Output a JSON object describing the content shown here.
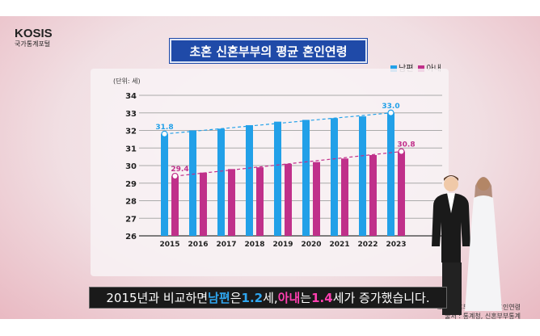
{
  "logo": {
    "name": "KOSIS",
    "subtitle": "국가통계포털"
  },
  "title": "초혼 신혼부부의 평균 혼인연령",
  "legend": [
    {
      "label": "남편",
      "color": "#22a0e8"
    },
    {
      "label": "아내",
      "color": "#c0308a"
    }
  ],
  "note": {
    "line1": "초혼 신혼부부의 평균 혼인연령",
    "line2": "출처 : 통계청, 신혼부부통계"
  },
  "caption": {
    "p1": "2015년과 비교하면 ",
    "p2": "남편",
    "p3": "은 ",
    "p4": "1.2",
    "p5": "세, ",
    "p6": "아내",
    "p7": "는 ",
    "p8": "1.4",
    "p9": "세가 증가했습니다."
  },
  "chart_data": {
    "type": "bar",
    "title": "초혼 신혼부부의 평균 혼인연령",
    "unit_label": "(단위: 세)",
    "categories": [
      "2015",
      "2016",
      "2017",
      "2018",
      "2019",
      "2020",
      "2021",
      "2022",
      "2023"
    ],
    "ylim": [
      26,
      34
    ],
    "yticks": [
      26,
      27,
      28,
      29,
      30,
      31,
      32,
      33,
      34
    ],
    "grid": true,
    "legend_placement": "top-right",
    "series": [
      {
        "name": "남편",
        "color": "#22a0e8",
        "values": [
          31.8,
          32.0,
          32.1,
          32.3,
          32.5,
          32.6,
          32.7,
          32.8,
          33.0
        ],
        "labels": {
          "0": "31.8",
          "8": "33.0"
        }
      },
      {
        "name": "아내",
        "color": "#c0308a",
        "values": [
          29.4,
          29.6,
          29.8,
          29.9,
          30.1,
          30.2,
          30.4,
          30.6,
          30.8
        ],
        "labels": {
          "0": "29.4",
          "8": "30.8"
        }
      }
    ]
  }
}
